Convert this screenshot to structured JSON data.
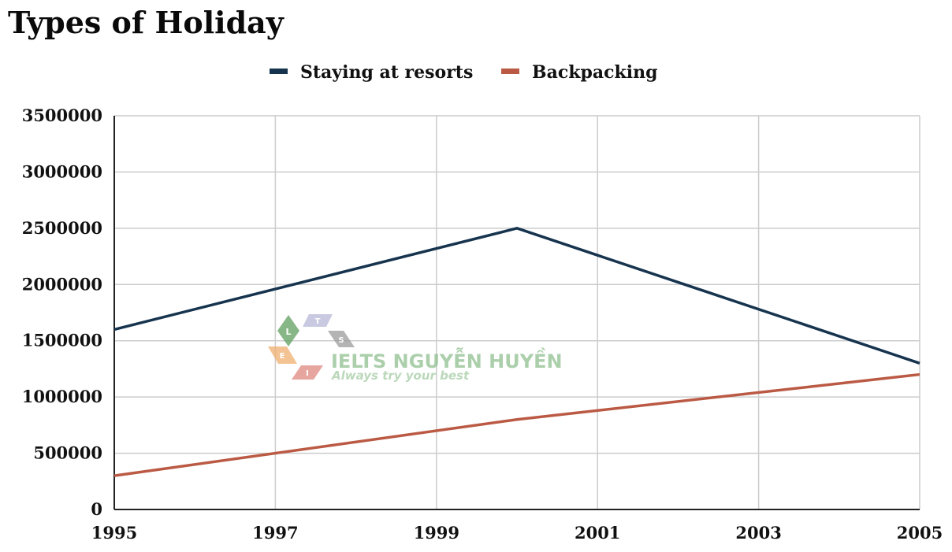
{
  "chart_data": {
    "type": "line",
    "title": "Types of Holiday",
    "xlabel": "",
    "ylabel": "",
    "x": [
      1995,
      2000,
      2005
    ],
    "x_ticks": [
      "1995",
      "1997",
      "1999",
      "2001",
      "2003",
      "2005"
    ],
    "xlim": [
      1995,
      2005
    ],
    "y_ticks": [
      "0",
      "500000",
      "1000000",
      "1500000",
      "2000000",
      "2500000",
      "3000000",
      "3500000"
    ],
    "ylim": [
      0,
      3500000
    ],
    "grid": true,
    "legend_position": "top-center",
    "series": [
      {
        "name": "Staying at resorts",
        "color": "#17344f",
        "values": [
          1600000,
          2500000,
          1300000
        ]
      },
      {
        "name": "Backpacking",
        "color": "#bb5a44",
        "values": [
          300000,
          800000,
          1200000
        ]
      }
    ]
  },
  "watermark": {
    "brand": "IELTS NGUYỄN HUYỀN",
    "tagline": "Always try your best",
    "letters": [
      "L",
      "T",
      "S",
      "E",
      "I"
    ],
    "brand_color": "#8fbf8f",
    "tagline_color": "#a5cca5"
  }
}
